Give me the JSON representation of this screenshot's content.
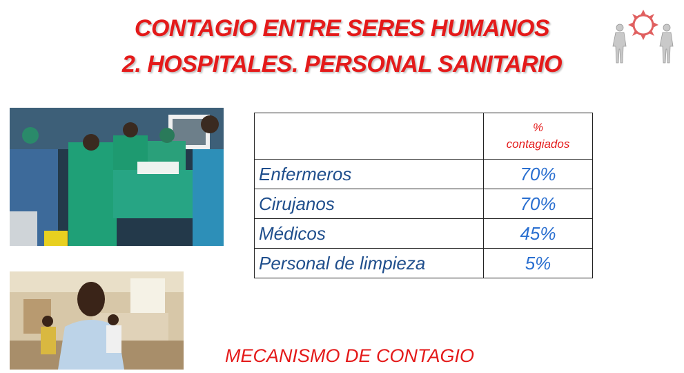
{
  "slide": {
    "title_line1": "CONTAGIO ENTRE SERES HUMANOS",
    "title_line2": "2. HOSPITALES. PERSONAL SANITARIO",
    "footer": "MECANISMO DE CONTAGIO"
  },
  "table": {
    "header_line1": "%",
    "header_line2": "contagiados",
    "rows": [
      {
        "category": "Enfermeros",
        "percent": "70%"
      },
      {
        "category": "Cirujanos",
        "percent": "70%"
      },
      {
        "category": "Médicos",
        "percent": "45%"
      },
      {
        "category": "Personal de limpieza",
        "percent": "5%"
      }
    ]
  },
  "colors": {
    "title": "#e41a1a",
    "table_text": "#1f4e8c",
    "table_values": "#2a6fd0"
  }
}
